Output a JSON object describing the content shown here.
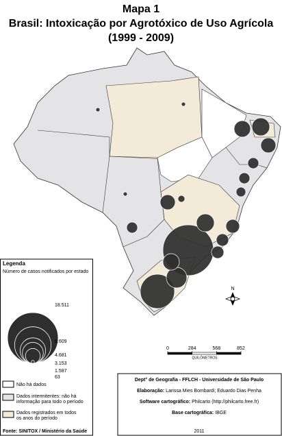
{
  "title": [
    "Mapa 1",
    "Brasil: Intoxicação por Agrotóxico de Uso Agrícola",
    "(1999 - 2009)"
  ],
  "map": {
    "circles": [
      18511,
      8451,
      3042,
      1947,
      2285,
      1947,
      1636,
      2285,
      1352,
      1095,
      865,
      865,
      662,
      865,
      1636,
      1095,
      338,
      122,
      122,
      122
    ],
    "scale": {
      "ticks": [
        0,
        284,
        568,
        852
      ],
      "unit": "QUILÔMETROS"
    },
    "north": "N"
  },
  "legend": {
    "title": "Legenda",
    "subtitle": "Número de casos notificados por estado",
    "sizes": [
      {
        "value": 18511,
        "label": "18.511"
      },
      {
        "value": 9609,
        "label": "9.609"
      },
      {
        "value": 4681,
        "label": "4.681"
      },
      {
        "value": 3153,
        "label": "3.153"
      },
      {
        "value": 1587,
        "label": "1.587"
      },
      63
    ],
    "categories": [
      "Não há dados",
      [
        "Dados intermitentes: não há",
        "informação para todo o período"
      ],
      [
        "Dados registrados em todos",
        "os anos do período"
      ]
    ]
  },
  "source": "Fonte: SINITOX / Ministério da Saúde",
  "credits": {
    "department": "Dept° de Geografia - FFLCH - Universidade de São Paulo",
    "lines": [
      {
        "label": "Elaboração:",
        "text": "Larissa Mies Bombardi; Eduardo Dias Penha"
      },
      {
        "label": "Software cartográfico:",
        "text": "Philcarto (http://philcarto.free.fr)"
      },
      {
        "label": "Base cartográfica:",
        "text": "IBGE"
      }
    ],
    "year": "2011"
  }
}
